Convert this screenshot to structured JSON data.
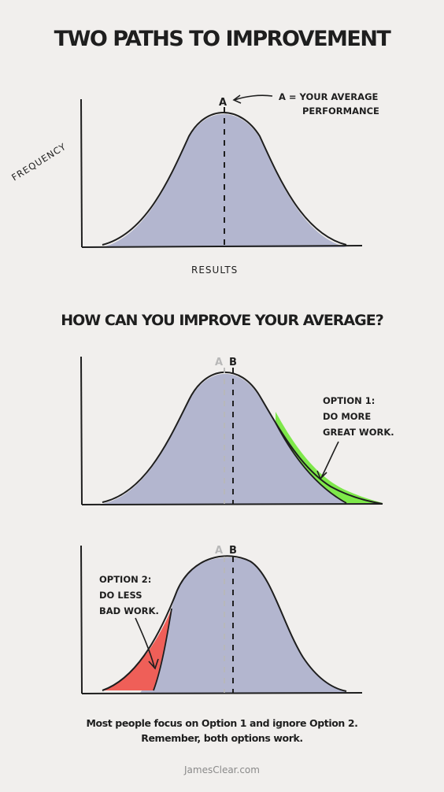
{
  "title": "TWO PATHS TO IMPROVEMENT",
  "question": "HOW CAN YOU IMPROVE YOUR AVERAGE?",
  "panel1": {
    "marker": "A",
    "annotation_line1": "A = YOUR AVERAGE",
    "annotation_line2": "PERFORMANCE",
    "y_axis_label": "FREQUENCY",
    "x_axis_label": "RESULTS"
  },
  "panel2": {
    "old_marker": "A",
    "new_marker": "B",
    "option_line1": "OPTION 1:",
    "option_line2": "DO MORE",
    "option_line3": "GREAT WORK.",
    "highlight_color": "#7ee84a"
  },
  "panel3": {
    "old_marker": "A",
    "new_marker": "B",
    "option_line1": "OPTION 2:",
    "option_line2": "DO LESS",
    "option_line3": "BAD WORK.",
    "highlight_color": "#ef5f58"
  },
  "footer": {
    "line1": "Most people focus on Option 1 and ignore Option 2.",
    "line2": "Remember, both options work."
  },
  "credit": "JamesClear.com",
  "colors": {
    "background": "#f1efed",
    "curve_fill": "#b3b6cf",
    "ink": "#1e1e1e"
  }
}
